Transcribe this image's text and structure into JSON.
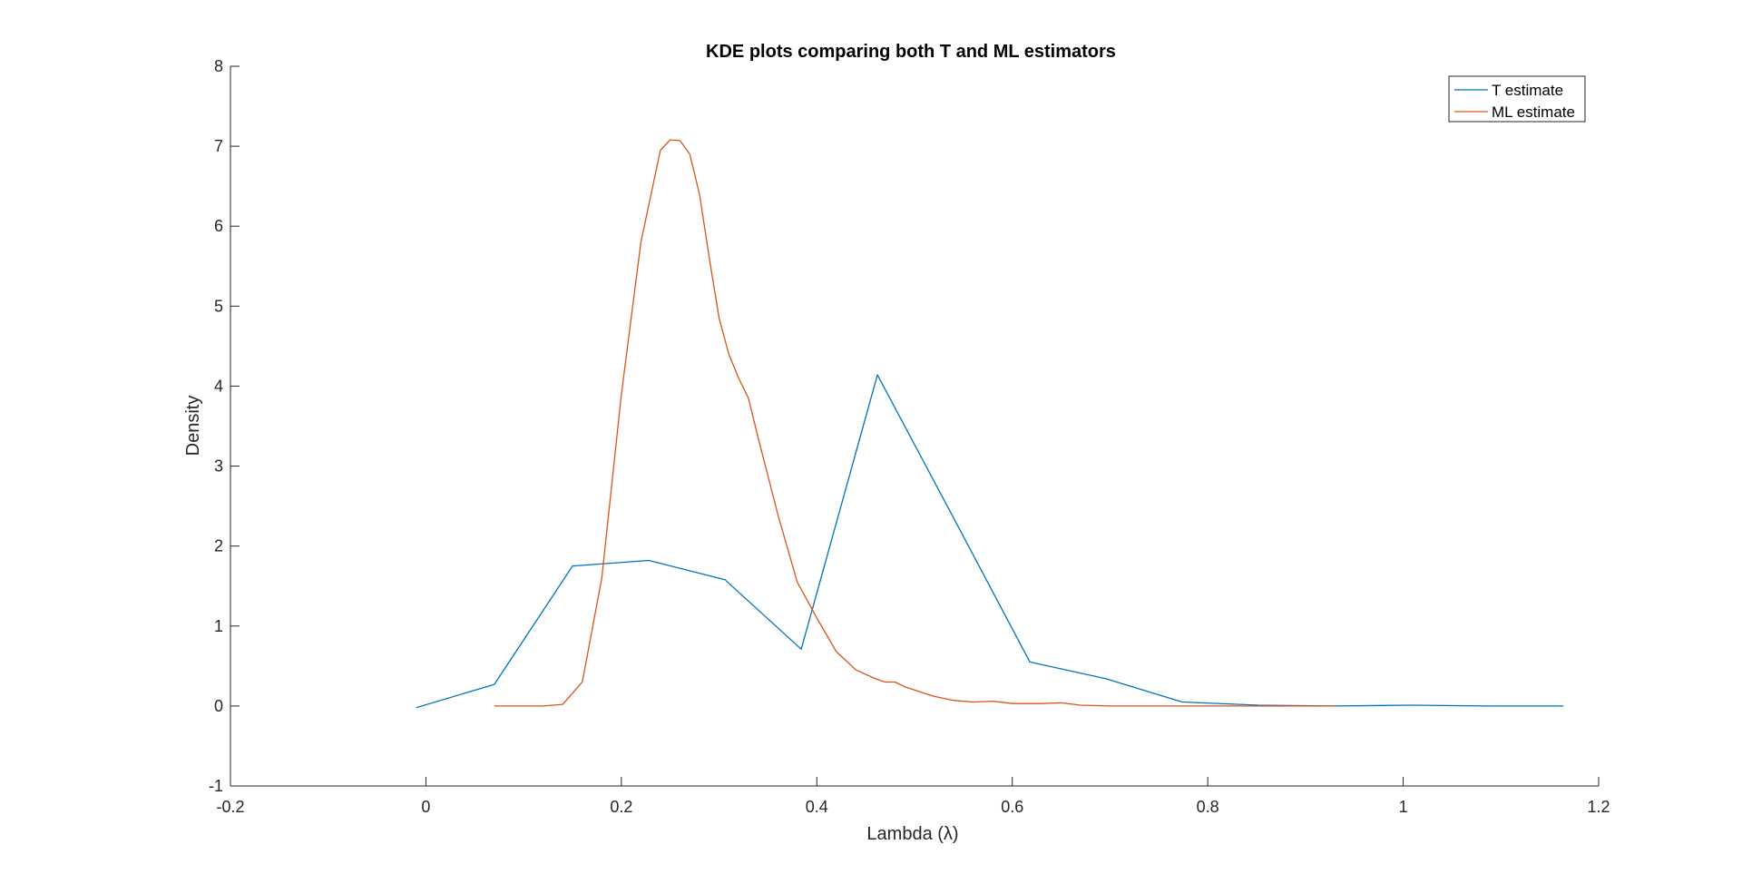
{
  "chart_data": {
    "type": "line",
    "title": "KDE plots comparing both T and ML estimators",
    "xlabel": "Lambda (λ)",
    "ylabel": "Density",
    "xlim": [
      -0.2,
      1.2
    ],
    "ylim": [
      -1,
      8
    ],
    "xticks": [
      -0.2,
      0,
      0.2,
      0.4,
      0.6,
      0.8,
      1,
      1.2
    ],
    "xtick_labels": [
      "-0.2",
      "0",
      "0.2",
      "0.4",
      "0.6",
      "0.8",
      "1",
      "1.2"
    ],
    "yticks": [
      -1,
      0,
      1,
      2,
      3,
      4,
      5,
      6,
      7,
      8
    ],
    "ytick_labels": [
      "-1",
      "0",
      "1",
      "2",
      "3",
      "4",
      "5",
      "6",
      "7",
      "8"
    ],
    "grid": false,
    "legend_position": "top-right",
    "series": [
      {
        "name": "T estimate",
        "color": "#0072BD",
        "x": [
          -0.01,
          0.07,
          0.15,
          0.228,
          0.306,
          0.384,
          0.462,
          0.54,
          0.618,
          0.696,
          0.774,
          0.852,
          0.93,
          1.008,
          1.086,
          1.164
        ],
        "y": [
          -0.02,
          0.27,
          1.75,
          1.82,
          1.58,
          0.71,
          4.14,
          2.35,
          0.55,
          0.34,
          0.05,
          0.01,
          0.0,
          0.01,
          0.0,
          0.0
        ]
      },
      {
        "name": "ML estimate",
        "color": "#D95319",
        "x": [
          0.07,
          0.1,
          0.12,
          0.14,
          0.16,
          0.18,
          0.2,
          0.22,
          0.24,
          0.25,
          0.26,
          0.27,
          0.28,
          0.29,
          0.3,
          0.31,
          0.32,
          0.33,
          0.34,
          0.36,
          0.38,
          0.4,
          0.42,
          0.44,
          0.46,
          0.47,
          0.48,
          0.49,
          0.5,
          0.52,
          0.54,
          0.56,
          0.58,
          0.6,
          0.63,
          0.65,
          0.67,
          0.7,
          0.75,
          0.8,
          0.85,
          0.9,
          0.93
        ],
        "y": [
          0.0,
          0.0,
          0.0,
          0.02,
          0.3,
          1.6,
          3.9,
          5.8,
          6.95,
          7.08,
          7.07,
          6.9,
          6.4,
          5.6,
          4.85,
          4.4,
          4.1,
          3.85,
          3.35,
          2.4,
          1.55,
          1.1,
          0.68,
          0.45,
          0.34,
          0.3,
          0.3,
          0.24,
          0.2,
          0.12,
          0.07,
          0.05,
          0.06,
          0.03,
          0.03,
          0.04,
          0.01,
          0.0,
          0.0,
          0.0,
          0.0,
          0.0,
          0.0
        ]
      }
    ]
  }
}
